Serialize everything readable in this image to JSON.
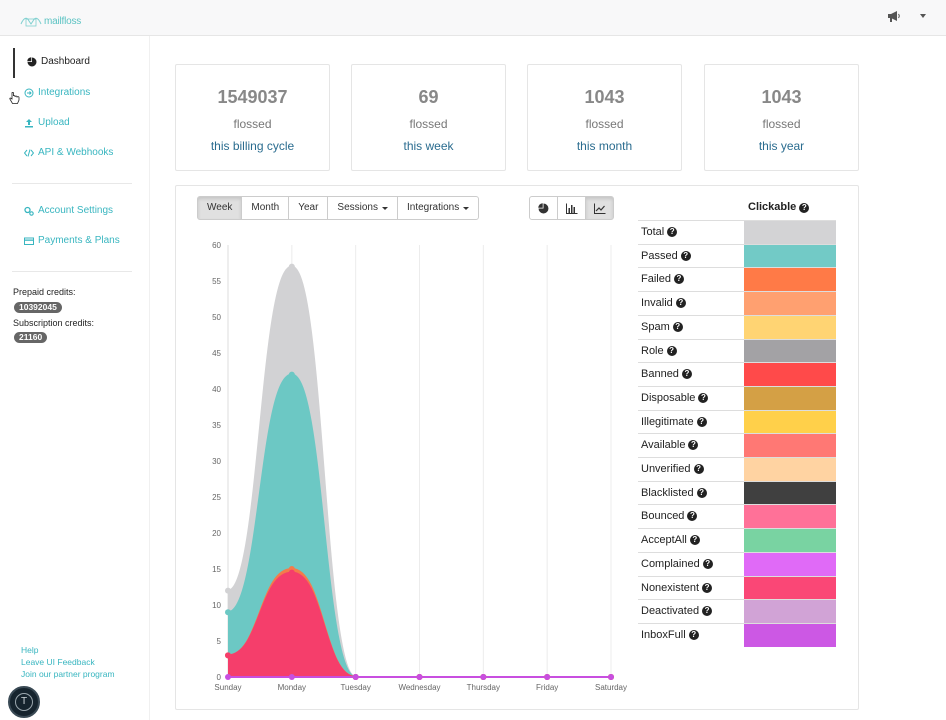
{
  "brand": {
    "name": "mailfloss",
    "accent": "#39b6c0"
  },
  "topbar": {
    "announce_icon": "megaphone-icon",
    "menu_icon": "chevron-down-icon"
  },
  "sidebar": {
    "items": [
      {
        "label": "Dashboard",
        "icon": "pie-chart-icon",
        "active": true
      },
      {
        "label": "Integrations",
        "icon": "circle-arrow-icon"
      },
      {
        "label": "Upload",
        "icon": "upload-icon"
      },
      {
        "label": "API & Webhooks",
        "icon": "code-icon"
      },
      {
        "label": "Account Settings",
        "icon": "gears-icon"
      },
      {
        "label": "Payments & Plans",
        "icon": "credit-card-icon"
      }
    ],
    "prepaid_label": "Prepaid credits:",
    "prepaid_value": "10392045",
    "subscription_label": "Subscription credits:",
    "subscription_value": "21160",
    "footer": {
      "help": "Help",
      "feedback": "Leave UI Feedback",
      "partner": "Join our partner program"
    },
    "avatar_letter": "T"
  },
  "stats": [
    {
      "value": "1549037",
      "label": "flossed",
      "period": "this billing cycle"
    },
    {
      "value": "69",
      "label": "flossed",
      "period": "this week"
    },
    {
      "value": "1043",
      "label": "flossed",
      "period": "this month"
    },
    {
      "value": "1043",
      "label": "flossed",
      "period": "this year"
    }
  ],
  "toolbar": {
    "week": "Week",
    "month": "Month",
    "year": "Year",
    "sessions": "Sessions",
    "integrations": "Integrations",
    "active_range": "Week",
    "view_icons": [
      "pie-chart-icon",
      "bar-chart-icon",
      "line-chart-icon"
    ],
    "active_view": "line-chart-icon"
  },
  "chart_data": {
    "type": "area",
    "x": [
      "Sunday",
      "Monday",
      "Tuesday",
      "Wednesday",
      "Thursday",
      "Friday",
      "Saturday"
    ],
    "ylim": [
      0,
      60
    ],
    "yticks": [
      0,
      5,
      10,
      15,
      20,
      25,
      30,
      35,
      40,
      45,
      50,
      55,
      60
    ],
    "grid": true,
    "series": [
      {
        "name": "Total",
        "color": "#d2d2d4",
        "values": [
          12,
          57,
          0,
          0,
          0,
          0,
          0
        ]
      },
      {
        "name": "Passed",
        "color": "#6cc8c4",
        "values": [
          9,
          42,
          0,
          0,
          0,
          0,
          0
        ]
      },
      {
        "name": "Failed",
        "color": "#f47b4a",
        "values": [
          3,
          15,
          0,
          0,
          0,
          0,
          0
        ]
      },
      {
        "name": "Nonexistent",
        "color": "#f53e6b",
        "values": [
          3,
          14.5,
          0,
          0,
          0,
          0,
          0
        ]
      },
      {
        "name": "InboxFull",
        "color": "#c84fe0",
        "values": [
          0,
          0,
          0,
          0,
          0,
          0,
          0
        ]
      }
    ]
  },
  "legend": {
    "title": "Clickable",
    "items": [
      {
        "label": "Total",
        "color": "#d3d3d5"
      },
      {
        "label": "Passed",
        "color": "#72cac6"
      },
      {
        "label": "Failed",
        "color": "#ff7a47"
      },
      {
        "label": "Invalid",
        "color": "#ffa070"
      },
      {
        "label": "Spam",
        "color": "#ffd473"
      },
      {
        "label": "Role",
        "color": "#a3a2a5"
      },
      {
        "label": "Banned",
        "color": "#ff4a4a"
      },
      {
        "label": "Disposable",
        "color": "#d4a045"
      },
      {
        "label": "Illegitimate",
        "color": "#ffd04a"
      },
      {
        "label": "Available",
        "color": "#ff7874"
      },
      {
        "label": "Unverified",
        "color": "#ffd3a2"
      },
      {
        "label": "Blacklisted",
        "color": "#404040"
      },
      {
        "label": "Bounced",
        "color": "#ff7198"
      },
      {
        "label": "AcceptAll",
        "color": "#79d3a2"
      },
      {
        "label": "Complained",
        "color": "#e06af7"
      },
      {
        "label": "Nonexistent",
        "color": "#fa4776"
      },
      {
        "label": "Deactivated",
        "color": "#d1a3d6"
      },
      {
        "label": "InboxFull",
        "color": "#cc58e4"
      }
    ]
  }
}
